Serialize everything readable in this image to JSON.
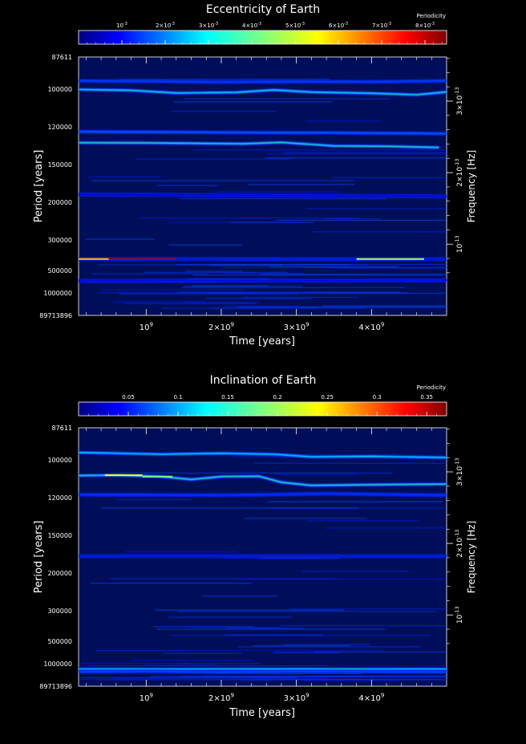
{
  "chart_data": [
    {
      "type": "heatmap",
      "title": "Eccentricity of Earth",
      "xlabel": "Time [years]",
      "ylabel": "Period [years]",
      "y2label": "Frequency [Hz]",
      "colorbar_title": "Periodicity",
      "colorbar_range": [
        0,
        0.0085
      ],
      "colorbar_ticks": [
        {
          "v": 0.001,
          "base": "10",
          "exp": "-3"
        },
        {
          "v": 0.002,
          "base": "2×10",
          "exp": "-3"
        },
        {
          "v": 0.003,
          "base": "3×10",
          "exp": "-3"
        },
        {
          "v": 0.004,
          "base": "4×10",
          "exp": "-3"
        },
        {
          "v": 0.005,
          "base": "5×10",
          "exp": "-3"
        },
        {
          "v": 0.006,
          "base": "6×10",
          "exp": "-3"
        },
        {
          "v": 0.007,
          "base": "7×10",
          "exp": "-3"
        },
        {
          "v": 0.008,
          "base": "8×10",
          "exp": "-3"
        }
      ],
      "xlim": [
        100000000,
        5000000000
      ],
      "x_ticks": [
        {
          "v": 1000000000,
          "base": "10",
          "exp": "9"
        },
        {
          "v": 2000000000,
          "base": "2×10",
          "exp": "9"
        },
        {
          "v": 3000000000,
          "base": "3×10",
          "exp": "9"
        },
        {
          "v": 4000000000,
          "base": "4×10",
          "exp": "9"
        }
      ],
      "y_scale": "reciprocal",
      "ylim": [
        87611,
        89713896
      ],
      "y_ticks": [
        {
          "v": 87611,
          "label": "87611"
        },
        {
          "v": 100000,
          "label": "100000"
        },
        {
          "v": 120000,
          "label": "120000"
        },
        {
          "v": 150000,
          "label": "150000"
        },
        {
          "v": 200000,
          "label": "200000"
        },
        {
          "v": 300000,
          "label": "300000"
        },
        {
          "v": 500000,
          "label": "500000"
        },
        {
          "v": 1000000,
          "label": "1000000"
        },
        {
          "v": 89713896,
          "label": "89713896"
        }
      ],
      "y2_ticks": [
        {
          "v": 3e-13,
          "base": "3×10",
          "exp": "-13"
        },
        {
          "v": 2e-13,
          "base": "2×10",
          "exp": "-13"
        },
        {
          "v": 1e-13,
          "base": "10",
          "exp": "-13"
        }
      ],
      "series": [
        {
          "points": [
            [
              100000000.0,
              96500
            ],
            [
              1000000000.0,
              96700
            ],
            [
              2000000000.0,
              97000
            ],
            [
              3000000000.0,
              96800
            ],
            [
              4000000000.0,
              96900
            ],
            [
              5000000000.0,
              96500
            ]
          ],
          "intensity": 0.0015
        },
        {
          "points": [
            [
              100000000.0,
              100200
            ],
            [
              800000000.0,
              100600
            ],
            [
              1400000000.0,
              101800
            ],
            [
              2200000000.0,
              101500
            ],
            [
              2700000000.0,
              100400
            ],
            [
              3200000000.0,
              101400
            ],
            [
              4000000000.0,
              101900
            ],
            [
              4600000000.0,
              102600
            ],
            [
              5000000000.0,
              101300
            ]
          ],
          "intensity": 0.0032
        },
        {
          "points": [
            [
              100000000.0,
              123200
            ],
            [
              1500000000.0,
              123500
            ],
            [
              2400000000.0,
              123800
            ],
            [
              3500000000.0,
              123900
            ],
            [
              5000000000.0,
              124500
            ]
          ],
          "intensity": 0.0018
        },
        {
          "points": [
            [
              100000000.0,
              131000
            ],
            [
              1000000000.0,
              131200
            ],
            [
              2300000000.0,
              131800
            ],
            [
              2800000000.0,
              130800
            ],
            [
              3500000000.0,
              133500
            ],
            [
              4200000000.0,
              133800
            ],
            [
              4900000000.0,
              134800
            ]
          ],
          "intensity": 0.0034
        },
        {
          "points": [
            [
              100000000.0,
              400000
            ],
            [
              2000000000.0,
              400000
            ],
            [
              3000000000.0,
              400000
            ],
            [
              4000000000.0,
              400000
            ],
            [
              5000000000.0,
              400000
            ]
          ],
          "intensity": 0.0026
        },
        {
          "points": [
            [
              100000000.0,
              187000
            ],
            [
              5000000000.0,
              190000
            ]
          ],
          "intensity": 0.0007
        },
        {
          "points": [
            [
              100000000.0,
              650000
            ],
            [
              5000000000.0,
              640000
            ]
          ],
          "intensity": 0.0008
        }
      ],
      "peaks": [
        {
          "x": [
            500000000.0,
            1400000000.0
          ],
          "y": 400000,
          "intensity": 0.0082
        },
        {
          "x": [
            100000000.0,
            500000000.0
          ],
          "y": 400000,
          "intensity": 0.006
        },
        {
          "x": [
            3800000000.0,
            4700000000.0
          ],
          "y": 400000,
          "intensity": 0.0048
        }
      ]
    },
    {
      "type": "heatmap",
      "title": "Inclination of Earth",
      "xlabel": "Time [years]",
      "ylabel": "Period [years]",
      "y2label": "Frequency [Hz]",
      "colorbar_title": "Periodicity",
      "colorbar_range": [
        0,
        0.37
      ],
      "colorbar_ticks": [
        {
          "v": 0.05,
          "label": "0.05"
        },
        {
          "v": 0.1,
          "label": "0.1"
        },
        {
          "v": 0.15,
          "label": "0.15"
        },
        {
          "v": 0.2,
          "label": "0.2"
        },
        {
          "v": 0.25,
          "label": "0.25"
        },
        {
          "v": 0.3,
          "label": "0.3"
        },
        {
          "v": 0.35,
          "label": "0.35"
        }
      ],
      "xlim": [
        100000000,
        5000000000
      ],
      "x_ticks": [
        {
          "v": 1000000000,
          "base": "10",
          "exp": "9"
        },
        {
          "v": 2000000000,
          "base": "2×10",
          "exp": "9"
        },
        {
          "v": 3000000000,
          "base": "3×10",
          "exp": "9"
        },
        {
          "v": 4000000000,
          "base": "4×10",
          "exp": "9"
        }
      ],
      "y_scale": "reciprocal",
      "ylim": [
        87611,
        89713896
      ],
      "y_ticks": [
        {
          "v": 87611,
          "label": "87611"
        },
        {
          "v": 100000,
          "label": "100000"
        },
        {
          "v": 120000,
          "label": "120000"
        },
        {
          "v": 150000,
          "label": "150000"
        },
        {
          "v": 200000,
          "label": "200000"
        },
        {
          "v": 300000,
          "label": "300000"
        },
        {
          "v": 500000,
          "label": "500000"
        },
        {
          "v": 1000000,
          "label": "1000000"
        },
        {
          "v": 89713896,
          "label": "89713896"
        }
      ],
      "y2_ticks": [
        {
          "v": 3e-13,
          "base": "3×10",
          "exp": "-13"
        },
        {
          "v": 2e-13,
          "base": "2×10",
          "exp": "-13"
        },
        {
          "v": 1e-13,
          "base": "10",
          "exp": "-13"
        }
      ],
      "series": [
        {
          "points": [
            [
              100000000.0,
              96900
            ],
            [
              500000000.0,
              97100
            ],
            [
              1200000000.0,
              97600
            ],
            [
              2000000000.0,
              97200
            ],
            [
              2700000000.0,
              97600
            ],
            [
              3200000000.0,
              98700
            ],
            [
              4000000000.0,
              98500
            ],
            [
              5000000000.0,
              99000
            ]
          ],
          "intensity": 0.13
        },
        {
          "points": [
            [
              100000000.0,
              107500
            ],
            [
              600000000.0,
              107200
            ],
            [
              1200000000.0,
              108000
            ],
            [
              1600000000.0,
              109500
            ],
            [
              2000000000.0,
              108000
            ],
            [
              2500000000.0,
              107800
            ],
            [
              2800000000.0,
              111000
            ],
            [
              3200000000.0,
              112700
            ],
            [
              4000000000.0,
              112300
            ],
            [
              5000000000.0,
              112000
            ]
          ],
          "intensity": 0.15
        },
        {
          "points": [
            [
              100000000.0,
              118200
            ],
            [
              2000000000.0,
              118500
            ],
            [
              2800000000.0,
              118000
            ],
            [
              3400000000.0,
              117500
            ],
            [
              5000000000.0,
              118500
            ]
          ],
          "intensity": 0.06
        },
        {
          "points": [
            [
              100000000.0,
              174000
            ],
            [
              2500000000.0,
              174000
            ],
            [
              5000000000.0,
              174000
            ]
          ],
          "intensity": 0.09
        },
        {
          "points": [
            [
              100000000.0,
              1280000
            ],
            [
              1500000000.0,
              1300000
            ],
            [
              2800000000.0,
              1280000
            ],
            [
              3500000000.0,
              1290000
            ],
            [
              5000000000.0,
              1290000
            ]
          ],
          "intensity": 0.13
        },
        {
          "points": [
            [
              100000000.0,
              1550000
            ],
            [
              1000000000.0,
              1500000
            ],
            [
              2000000000.0,
              1600000
            ],
            [
              3000000000.0,
              1520000
            ],
            [
              5000000000.0,
              1560000
            ]
          ],
          "intensity": 0.07
        }
      ],
      "peaks": [
        {
          "x": [
            450000000.0,
            950000000.0
          ],
          "y": 107300,
          "intensity": 0.24
        },
        {
          "x": [
            950000000.0,
            1350000000.0
          ],
          "y": 108000,
          "intensity": 0.18
        }
      ]
    }
  ]
}
